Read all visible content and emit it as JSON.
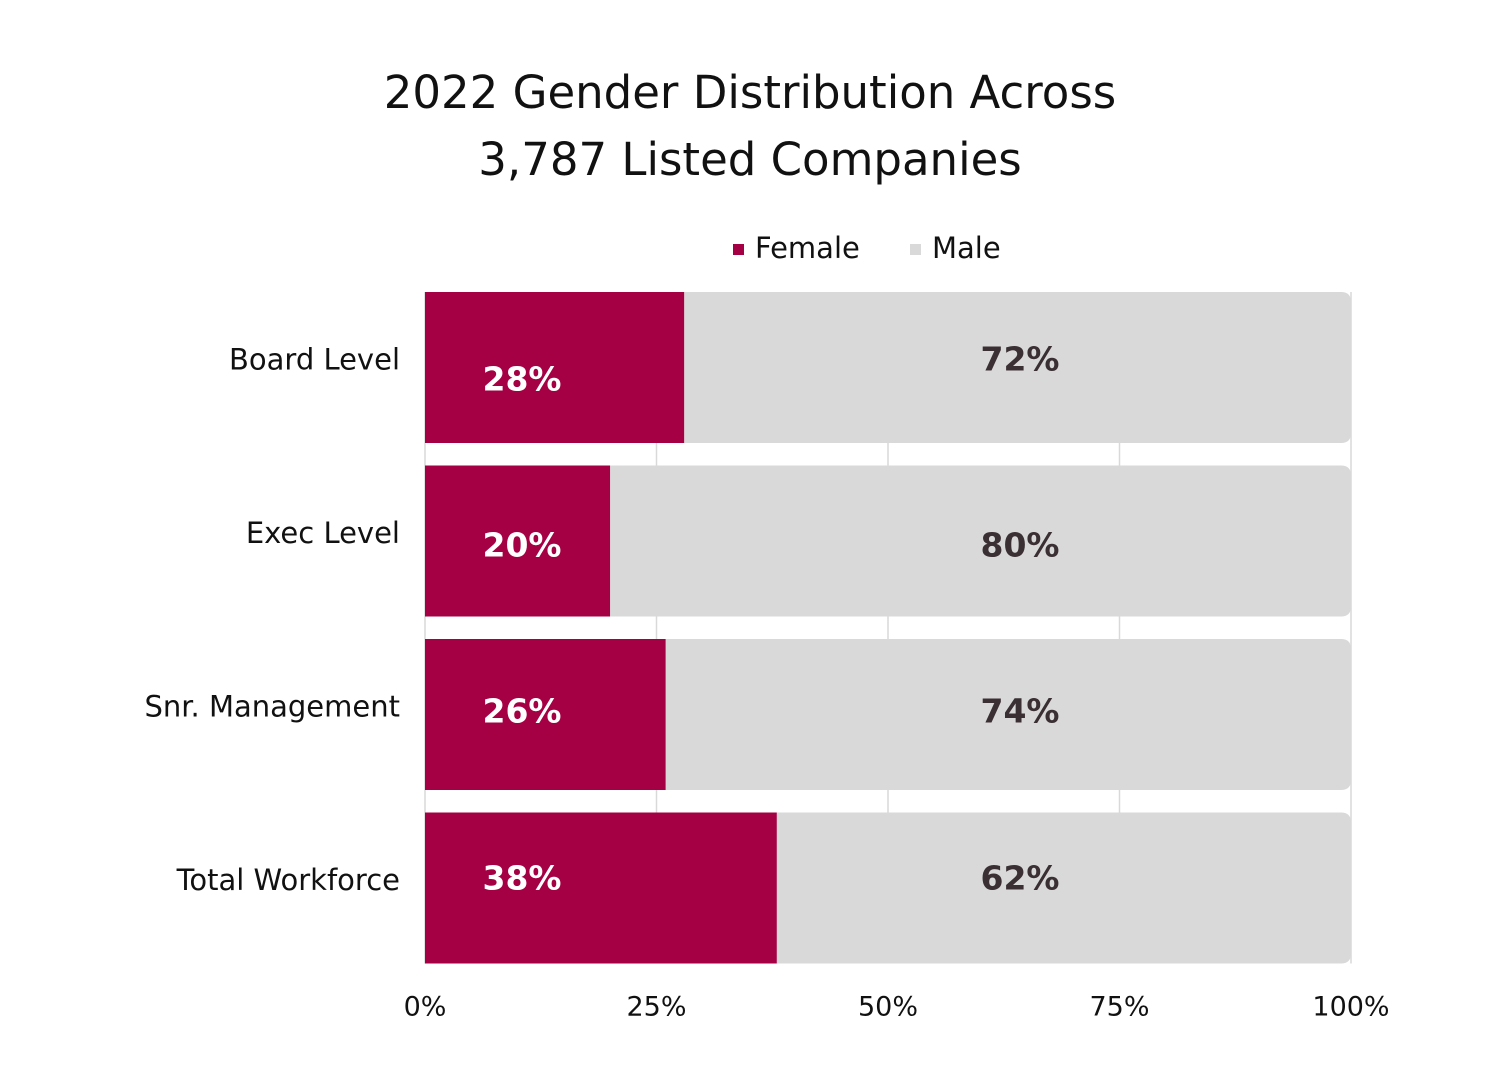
{
  "chart_data": {
    "type": "bar",
    "orientation": "horizontal",
    "stacked": true,
    "title_lines": [
      "2022 Gender Distribution Across",
      "3,787 Listed Companies"
    ],
    "categories": [
      "Board Level",
      "Exec Level",
      "Snr. Management",
      "Total Workforce"
    ],
    "series": [
      {
        "name": "Female",
        "values": [
          28,
          20,
          26,
          38
        ],
        "labels": [
          "28%",
          "20%",
          "26%",
          "38%"
        ],
        "color": "#a50044",
        "label_color": "#ffffff"
      },
      {
        "name": "Male",
        "values": [
          72,
          80,
          74,
          62
        ],
        "labels": [
          "72%",
          "80%",
          "74%",
          "62%"
        ],
        "color": "#d9d9d9",
        "label_color": "#3a2f33"
      }
    ],
    "x_ticks": [
      0,
      25,
      50,
      75,
      100
    ],
    "x_tick_labels": [
      "0%",
      "25%",
      "50%",
      "75%",
      "100%"
    ],
    "xlim": [
      0,
      100
    ],
    "grid": true,
    "legend_position": "top"
  }
}
